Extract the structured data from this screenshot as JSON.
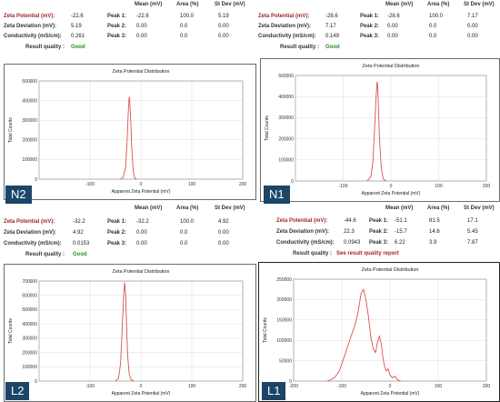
{
  "panels": [
    {
      "id": "N2",
      "tag": "N2",
      "stats": {
        "headers": {
          "mean": "Mean (mV)",
          "area": "Area (%)",
          "stdev": "St Dev (mV)"
        },
        "zeta_potential_label": "Zeta Potential (mV):",
        "zeta_potential": "-22.6",
        "zeta_deviation_label": "Zeta Deviation (mV):",
        "zeta_deviation": "5.19",
        "conductivity_label": "Conductivity (mS/cm):",
        "conductivity": "0.261",
        "quality_label": "Result quality :",
        "quality": "Good",
        "peaks": [
          {
            "label": "Peak 1:",
            "mean": "-22.6",
            "area": "100.0",
            "stdev": "5.19"
          },
          {
            "label": "Peak 2:",
            "mean": "0.00",
            "area": "0.0",
            "stdev": "0.00"
          },
          {
            "label": "Peak 3:",
            "mean": "0.00",
            "area": "0.0",
            "stdev": "0.00"
          }
        ]
      }
    },
    {
      "id": "N1",
      "tag": "N1",
      "stats": {
        "headers": {
          "mean": "Mean (mV)",
          "area": "Area (%)",
          "stdev": "St Dev (mV)"
        },
        "zeta_potential_label": "Zeta Potential (mV):",
        "zeta_potential": "-28.6",
        "zeta_deviation_label": "Zeta Deviation (mV):",
        "zeta_deviation": "7.17",
        "conductivity_label": "Conductivity (mS/cm):",
        "conductivity": "0.149",
        "quality_label": "Result quality :",
        "quality": "Good",
        "peaks": [
          {
            "label": "Peak 1:",
            "mean": "-28.6",
            "area": "100.0",
            "stdev": "7.17"
          },
          {
            "label": "Peak 2:",
            "mean": "0.00",
            "area": "0.0",
            "stdev": "0.00"
          },
          {
            "label": "Peak 3:",
            "mean": "0.00",
            "area": "0.0",
            "stdev": "0.00"
          }
        ]
      }
    },
    {
      "id": "L2",
      "tag": "L2",
      "stats": {
        "headers": {
          "mean": "Mean (mV)",
          "area": "Area (%)",
          "stdev": "St Dev (mV)"
        },
        "zeta_potential_label": "Zeta Potential (mV):",
        "zeta_potential": "-32.2",
        "zeta_deviation_label": "Zeta Deviation (mV):",
        "zeta_deviation": "4.92",
        "conductivity_label": "Conductivity (mS/cm):",
        "conductivity": "0.0153",
        "quality_label": "Result quality :",
        "quality": "Good",
        "peaks": [
          {
            "label": "Peak 1:",
            "mean": "-32.2",
            "area": "100.0",
            "stdev": "4.92"
          },
          {
            "label": "Peak 2:",
            "mean": "0.00",
            "area": "0.0",
            "stdev": "0.00"
          },
          {
            "label": "Peak 3:",
            "mean": "0.00",
            "area": "0.0",
            "stdev": "0.00"
          }
        ]
      }
    },
    {
      "id": "L1",
      "tag": "L1",
      "stats": {
        "headers": {
          "mean": "Mean (mV)",
          "area": "Area (%)",
          "stdev": "St Dev (mV)"
        },
        "zeta_potential_label": "Zeta Potential (mV):",
        "zeta_potential": "-44.6",
        "zeta_deviation_label": "Zeta Deviation (mV):",
        "zeta_deviation": "22.3",
        "conductivity_label": "Conductivity (mS/cm):",
        "conductivity": "0.0943",
        "quality_label": "Result quality :",
        "quality": "See result quality report",
        "peaks": [
          {
            "label": "Peak 1:",
            "mean": "-51.1",
            "area": "81.5",
            "stdev": "17.1"
          },
          {
            "label": "Peak 2:",
            "mean": "-15.7",
            "area": "14.6",
            "stdev": "5.45"
          },
          {
            "label": "Peak 3:",
            "mean": "6.22",
            "area": "3.9",
            "stdev": "7.87"
          }
        ]
      }
    }
  ],
  "colors": {
    "curve": "#d9534f",
    "quality_good": "#2a8a2a",
    "quality_bad": "#b02020",
    "tag_bg": "#1d4568",
    "label_red": "#a0262a"
  },
  "chart_data": [
    {
      "panel": "N2",
      "type": "line",
      "title": "Zeta Potential Distribution",
      "xlabel": "Apparent Zeta Potential (mV)",
      "ylabel": "Total Counts",
      "xlim": [
        -200,
        200
      ],
      "ylim": [
        0,
        500000
      ],
      "xticks": [
        -100,
        0,
        100,
        200
      ],
      "yticks": [
        0,
        100000,
        200000,
        300000,
        400000,
        500000
      ],
      "ytick_labels": [
        "0",
        "100000",
        "200000",
        "300000",
        "400000",
        "500000"
      ],
      "grid": true,
      "series": [
        {
          "x": [
            -40,
            -35,
            -30,
            -27,
            -25,
            -23,
            -22,
            -20,
            -18,
            -15,
            -12,
            -8
          ],
          "y": [
            0,
            10000,
            60000,
            200000,
            330000,
            420000,
            400000,
            300000,
            160000,
            40000,
            5000,
            0
          ]
        }
      ]
    },
    {
      "panel": "N1",
      "type": "line",
      "title": "Zeta Potential Distribution",
      "xlabel": "Apparent Zeta Potential (mV)",
      "ylabel": "Total Counts",
      "xlim": [
        -200,
        200
      ],
      "ylim": [
        0,
        500000
      ],
      "xticks": [
        -100,
        0,
        100,
        200
      ],
      "yticks": [
        0,
        100000,
        200000,
        300000,
        400000,
        500000
      ],
      "ytick_labels": [
        "0",
        "100000",
        "200000",
        "300000",
        "400000",
        "500000"
      ],
      "grid": true,
      "series": [
        {
          "x": [
            -50,
            -42,
            -38,
            -34,
            -31,
            -29,
            -28,
            -26,
            -24,
            -20,
            -16,
            -10
          ],
          "y": [
            0,
            20000,
            90000,
            250000,
            400000,
            470000,
            460000,
            350000,
            200000,
            60000,
            10000,
            0
          ]
        }
      ]
    },
    {
      "panel": "L2",
      "type": "line",
      "title": "Zeta Potential Distribution",
      "xlabel": "Apparent Zeta Potential (mV)",
      "ylabel": "Total Counts",
      "xlim": [
        -200,
        200
      ],
      "ylim": [
        0,
        700000
      ],
      "xticks": [
        -100,
        0,
        100,
        200
      ],
      "yticks": [
        0,
        100000,
        200000,
        300000,
        400000,
        500000,
        600000,
        700000
      ],
      "ytick_labels": [
        "0",
        "100000",
        "200000",
        "300000",
        "400000",
        "500000",
        "600000",
        "700000"
      ],
      "grid": true,
      "series": [
        {
          "x": [
            -50,
            -44,
            -40,
            -37,
            -34,
            -32,
            -30,
            -28,
            -26,
            -23,
            -19,
            -14
          ],
          "y": [
            0,
            20000,
            120000,
            350000,
            600000,
            690000,
            600000,
            380000,
            180000,
            50000,
            8000,
            0
          ]
        }
      ]
    },
    {
      "panel": "L1",
      "type": "line",
      "title": "Zeta Potential Distribution",
      "xlabel": "Apparent Zeta Potential (mV)",
      "ylabel": "Total Counts",
      "xlim": [
        -200,
        200
      ],
      "ylim": [
        0,
        250000
      ],
      "xticks": [
        -200,
        -100,
        0,
        100,
        200
      ],
      "yticks": [
        0,
        50000,
        100000,
        150000,
        200000,
        250000
      ],
      "ytick_labels": [
        "0",
        "50000",
        "100000",
        "150000",
        "200000",
        "250000"
      ],
      "grid": true,
      "series": [
        {
          "x": [
            -130,
            -115,
            -105,
            -95,
            -85,
            -78,
            -72,
            -66,
            -60,
            -55,
            -50,
            -45,
            -40,
            -35,
            -30,
            -26,
            -22,
            -18,
            -15,
            -12,
            -8,
            -4,
            0,
            5,
            10,
            16,
            22
          ],
          "y": [
            0,
            8000,
            25000,
            60000,
            95000,
            120000,
            140000,
            170000,
            215000,
            225000,
            200000,
            160000,
            110000,
            80000,
            70000,
            95000,
            110000,
            90000,
            60000,
            40000,
            25000,
            30000,
            15000,
            8000,
            12000,
            3000,
            0
          ]
        }
      ]
    }
  ]
}
